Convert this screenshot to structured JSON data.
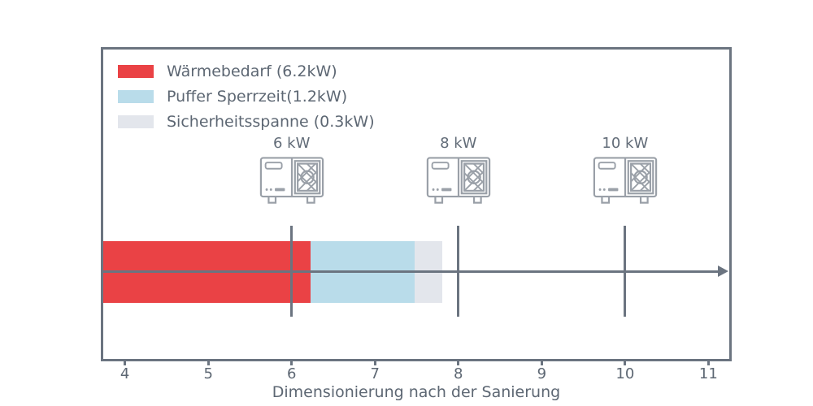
{
  "colors": {
    "background": "#ffffff",
    "axis_line": "#6b7480",
    "text": "#5d6773",
    "icon_stroke": "#9aa0a8",
    "bar_red": "#ea4245",
    "bar_lightblue": "#b9dcea",
    "bar_gray": "#e3e6ec"
  },
  "chart_data": {
    "type": "bar",
    "orientation": "horizontal-stacked",
    "title": "",
    "xlabel": "Dimensionierung nach der Sanierung",
    "ylabel": "",
    "x_range": [
      3.74,
      11.25
    ],
    "xticks": [
      4,
      5,
      6,
      7,
      8,
      9,
      10,
      11
    ],
    "grid": false,
    "legend_position": "upper-left-inside",
    "segments": [
      {
        "name": "Wärmebedarf",
        "legend_label": "Wärmebedarf (6.2kW)",
        "value_kw": 6.2,
        "plot_start": 3.74,
        "plot_end": 6.23,
        "color": "#ea4245"
      },
      {
        "name": "Puffer Sperrzeit",
        "legend_label": "Puffer Sperrzeit(1.2kW)",
        "value_kw": 1.2,
        "plot_start": 6.23,
        "plot_end": 7.48,
        "color": "#b9dcea"
      },
      {
        "name": "Sicherheitsspanne",
        "legend_label": "Sicherheitsspanne (0.3kW)",
        "value_kw": 0.3,
        "plot_start": 7.48,
        "plot_end": 7.81,
        "color": "#e3e6ec"
      }
    ],
    "markers": [
      {
        "value": 6,
        "label": "6 kW",
        "icon": "heat-pump-icon"
      },
      {
        "value": 8,
        "label": "8 kW",
        "icon": "heat-pump-icon"
      },
      {
        "value": 10,
        "label": "10 kW",
        "icon": "heat-pump-icon"
      }
    ],
    "axis_arrow_right": true
  }
}
